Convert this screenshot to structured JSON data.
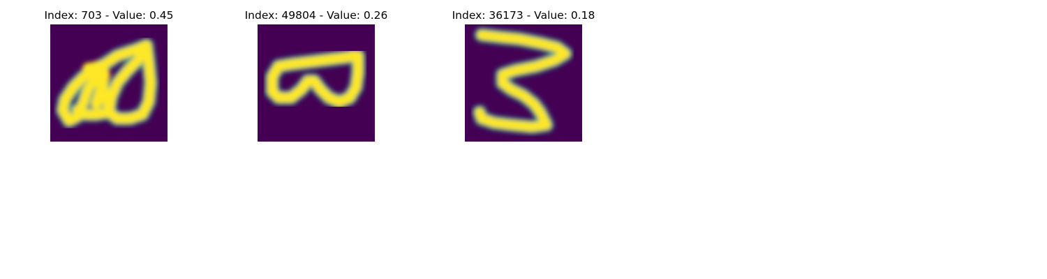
{
  "colors": {
    "background": "#440154",
    "mid": "#21918c",
    "stroke": "#fde725"
  },
  "panels": [
    {
      "title": "Index: 703 - Value: 0.45"
    },
    {
      "title": "Index: 49804 - Value: 0.26"
    },
    {
      "title": "Index: 36173 - Value: 0.18"
    }
  ]
}
